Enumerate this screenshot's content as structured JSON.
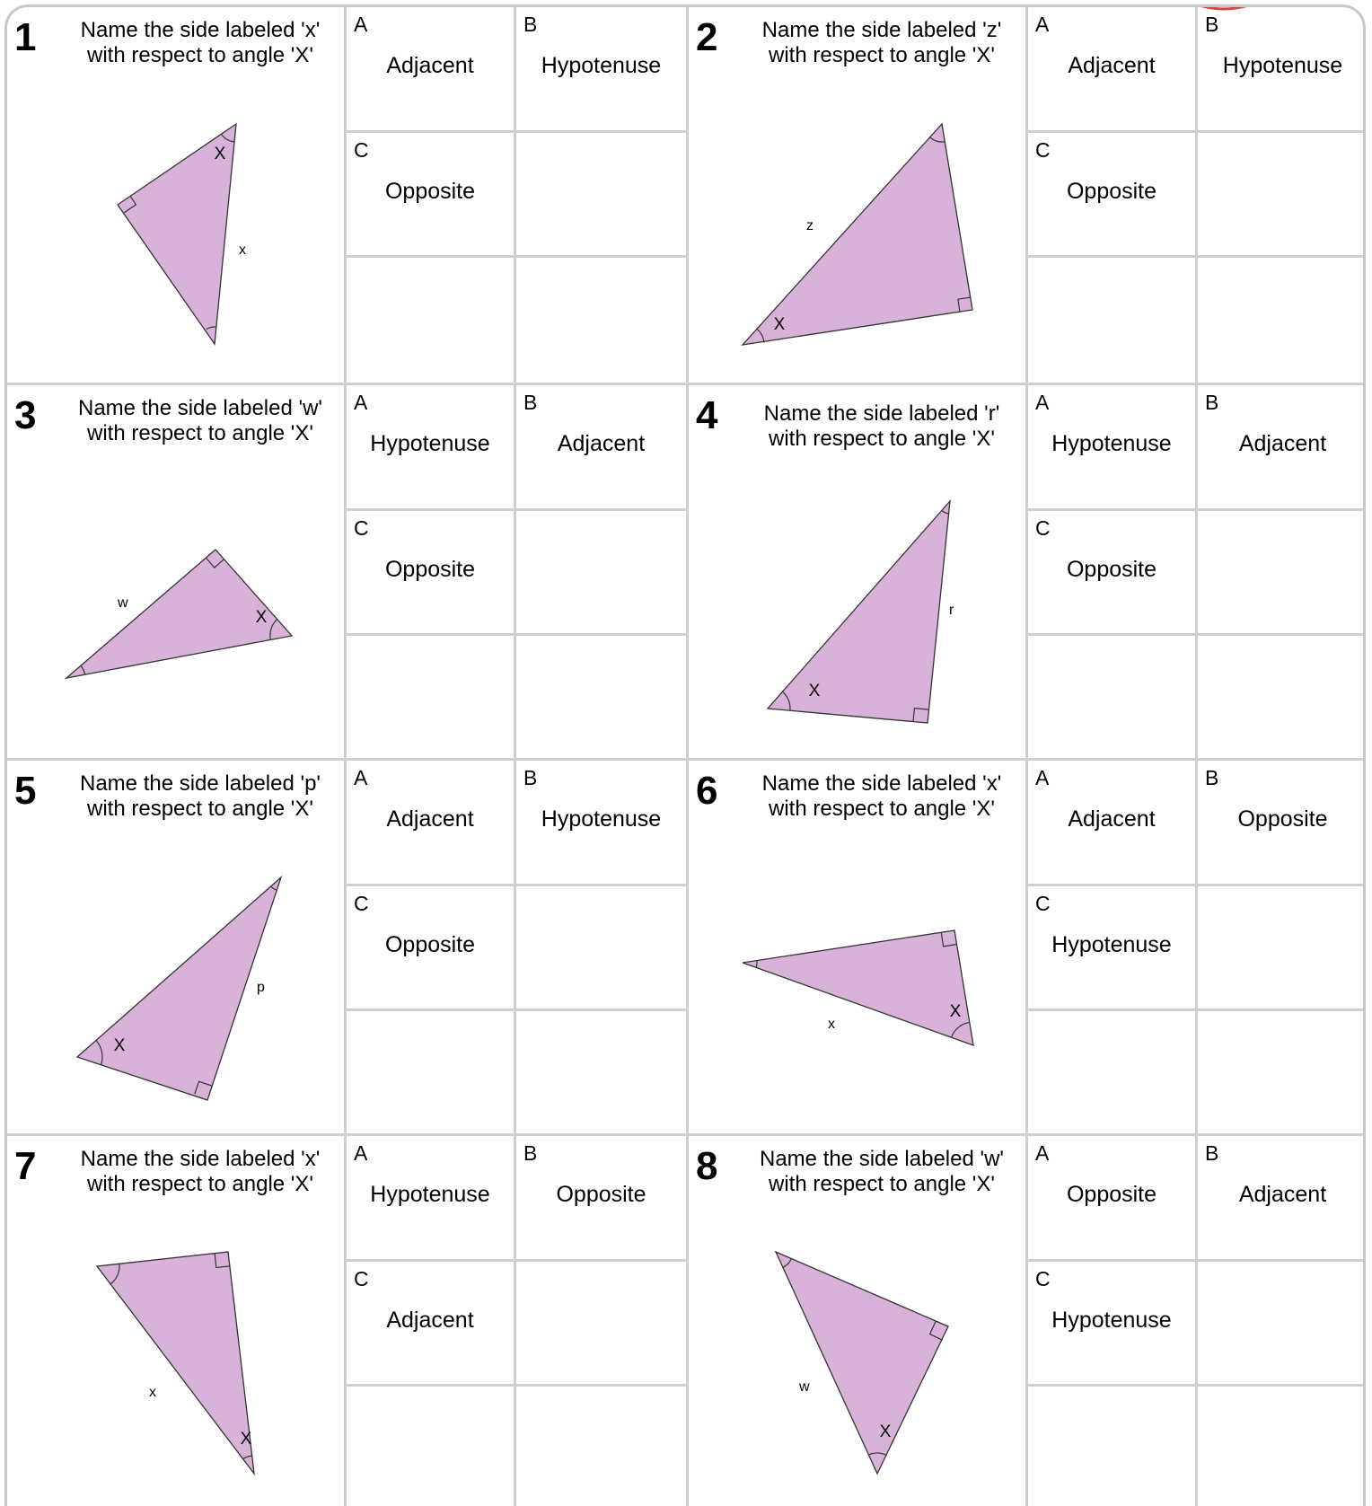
{
  "colors": {
    "triangle_fill": "#d9b2da",
    "triangle_stroke": "#333333",
    "grid_line": "#d0d0d0"
  },
  "questions": [
    {
      "number": "1",
      "text": "Name the side labeled 'x' with respect to angle 'X'",
      "angle_label": "X",
      "side_label": "x",
      "options": [
        {
          "letter": "A",
          "text": "Adjacent"
        },
        {
          "letter": "B",
          "text": "Hypotenuse"
        },
        {
          "letter": "C",
          "text": "Opposite"
        }
      ]
    },
    {
      "number": "2",
      "text": "Name the side labeled 'z' with respect to angle 'X'",
      "angle_label": "X",
      "side_label": "z",
      "options": [
        {
          "letter": "A",
          "text": "Adjacent"
        },
        {
          "letter": "B",
          "text": "Hypotenuse"
        },
        {
          "letter": "C",
          "text": "Opposite"
        }
      ]
    },
    {
      "number": "3",
      "text": "Name the side labeled 'w' with respect to angle 'X'",
      "angle_label": "X",
      "side_label": "w",
      "options": [
        {
          "letter": "A",
          "text": "Hypotenuse"
        },
        {
          "letter": "B",
          "text": "Adjacent"
        },
        {
          "letter": "C",
          "text": "Opposite"
        }
      ]
    },
    {
      "number": "4",
      "text": "Name the side labeled 'r' with respect to angle 'X'",
      "angle_label": "X",
      "side_label": "r",
      "options": [
        {
          "letter": "A",
          "text": "Hypotenuse"
        },
        {
          "letter": "B",
          "text": "Adjacent"
        },
        {
          "letter": "C",
          "text": "Opposite"
        }
      ]
    },
    {
      "number": "5",
      "text": "Name the side labeled 'p' with respect to angle 'X'",
      "angle_label": "X",
      "side_label": "p",
      "options": [
        {
          "letter": "A",
          "text": "Adjacent"
        },
        {
          "letter": "B",
          "text": "Hypotenuse"
        },
        {
          "letter": "C",
          "text": "Opposite"
        }
      ]
    },
    {
      "number": "6",
      "text": "Name the side labeled 'x' with respect to angle 'X'",
      "angle_label": "X",
      "side_label": "x",
      "options": [
        {
          "letter": "A",
          "text": "Adjacent"
        },
        {
          "letter": "B",
          "text": "Opposite"
        },
        {
          "letter": "C",
          "text": "Hypotenuse"
        }
      ]
    },
    {
      "number": "7",
      "text": "Name the side labeled 'x' with respect to angle 'X'",
      "angle_label": "X",
      "side_label": "x",
      "options": [
        {
          "letter": "A",
          "text": "Hypotenuse"
        },
        {
          "letter": "B",
          "text": "Opposite"
        },
        {
          "letter": "C",
          "text": "Adjacent"
        }
      ]
    },
    {
      "number": "8",
      "text": "Name the side labeled 'w' with respect to angle 'X'",
      "angle_label": "X",
      "side_label": "w",
      "options": [
        {
          "letter": "A",
          "text": "Opposite"
        },
        {
          "letter": "B",
          "text": "Adjacent"
        },
        {
          "letter": "C",
          "text": "Hypotenuse"
        }
      ]
    }
  ]
}
